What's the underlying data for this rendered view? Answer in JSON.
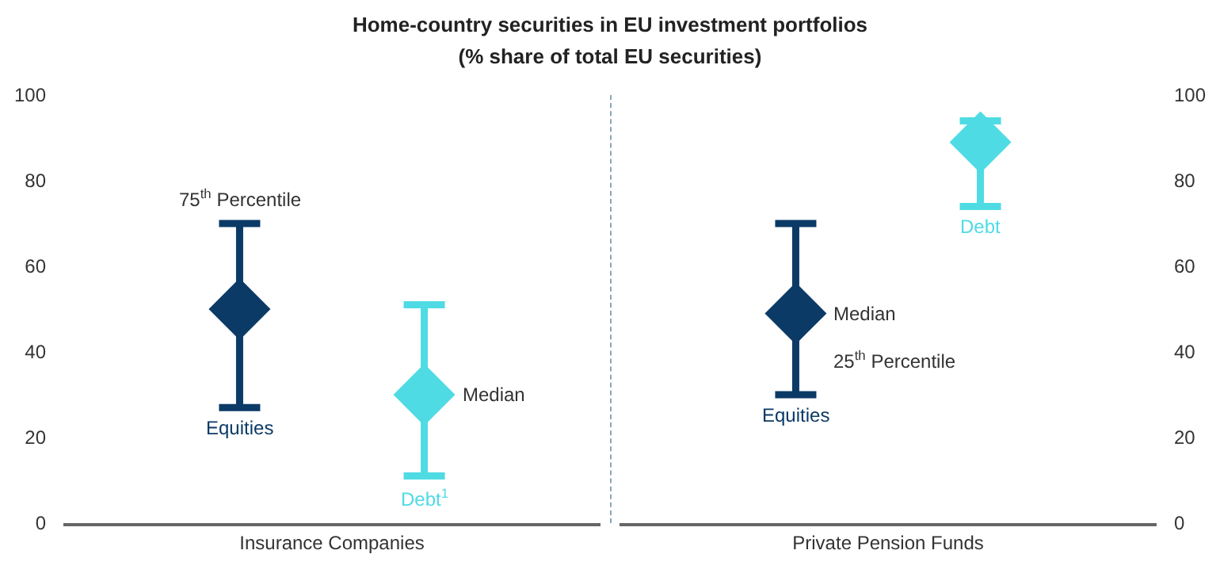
{
  "chart_data": [
    {
      "type": "scatter",
      "title": "Home-country securities in EU investment portfolios",
      "subtitle": "(% share of total EU securities)",
      "categories": [
        "Insurance Companies"
      ],
      "marker": "diamond",
      "legend": false,
      "grid": false,
      "ylim": [
        0,
        100
      ],
      "yticks": [
        0,
        20,
        40,
        60,
        80,
        100
      ],
      "series": [
        {
          "name": "Equities",
          "color": "#0b3a66",
          "values": [
            50
          ],
          "errors": [
            [
              27,
              70
            ]
          ]
        },
        {
          "name": "Debt$^{1}$",
          "color": "#4fdbe4",
          "values": [
            30
          ],
          "errors": [
            [
              11,
              51
            ]
          ]
        }
      ],
      "annotations": [
        "75$^{th}$ Percentile",
        "Median"
      ]
    },
    {
      "type": "scatter",
      "categories": [
        "Private Pension Funds"
      ],
      "marker": "diamond",
      "legend": false,
      "grid": false,
      "ylim": [
        0,
        100
      ],
      "yticks": [
        0,
        20,
        40,
        60,
        80,
        100
      ],
      "series": [
        {
          "name": "Equities",
          "color": "#0b3a66",
          "values": [
            49
          ],
          "errors": [
            [
              30,
              70
            ]
          ]
        },
        {
          "name": "Debt",
          "color": "#4fdbe4",
          "values": [
            89
          ],
          "errors": [
            [
              74,
              94
            ]
          ]
        }
      ],
      "annotations": [
        "Median",
        "25$^{th}$ Percentile"
      ]
    }
  ]
}
